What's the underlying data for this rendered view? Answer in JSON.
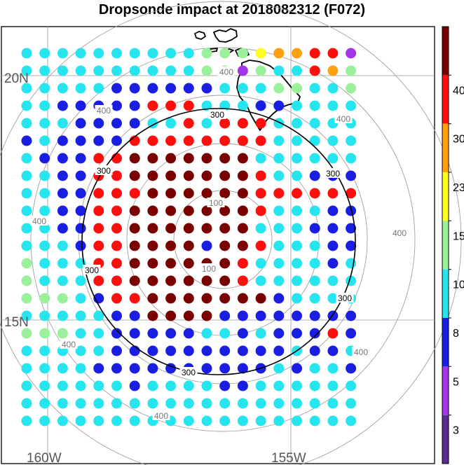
{
  "title": "Dropsonde impact at 2018082312 (F072)",
  "map": {
    "lat_labels": [
      "20N",
      "15N"
    ],
    "lon_labels": [
      "160W",
      "155W"
    ],
    "range_ring_labels": [
      "100",
      "400",
      "300"
    ],
    "background": "#ffffff",
    "gridline_color": "#9a9a9a",
    "coastline_color": "#000000"
  },
  "colorbar": {
    "tick_labels": [
      "3",
      "5",
      "8",
      "10",
      "15",
      "23",
      "30",
      "40"
    ],
    "colors": [
      "#5b2c8f",
      "#a335e6",
      "#1a1ee0",
      "#26e5ee",
      "#9bf09b",
      "#ffff20",
      "#ffa010",
      "#ff0e0e",
      "#7a0000"
    ]
  },
  "chart_data": {
    "type": "scatter",
    "rows": [
      "3333333333444566771",
      "3333333333441433764",
      "3333322222233344334",
      "3322222777333223333",
      "3332222337377733333",
      "2322227777777733333",
      "3222778888888333333",
      "3322778888888733222",
      "3322777888888777777",
      "3322778888888733322",
      "3322778888888333222",
      "3332778888288733322",
      "4333778888887333323",
      "4333778888887333333",
      "4443277888888823333",
      "3333322888822222222",
      "4443322222332322272",
      "3333322222222223223",
      "3333222222222232332",
      "3333332333322333333",
      "3333333333333333333",
      "3333333333333333333"
    ],
    "value_classes": [
      "<3",
      "3-5",
      "5-8",
      "8-10",
      "10-15",
      "15-23",
      "23-30",
      "30-40",
      ">40"
    ],
    "contours": [
      {
        "value": "300"
      },
      {
        "value": "100"
      },
      {
        "value": "400"
      }
    ]
  }
}
